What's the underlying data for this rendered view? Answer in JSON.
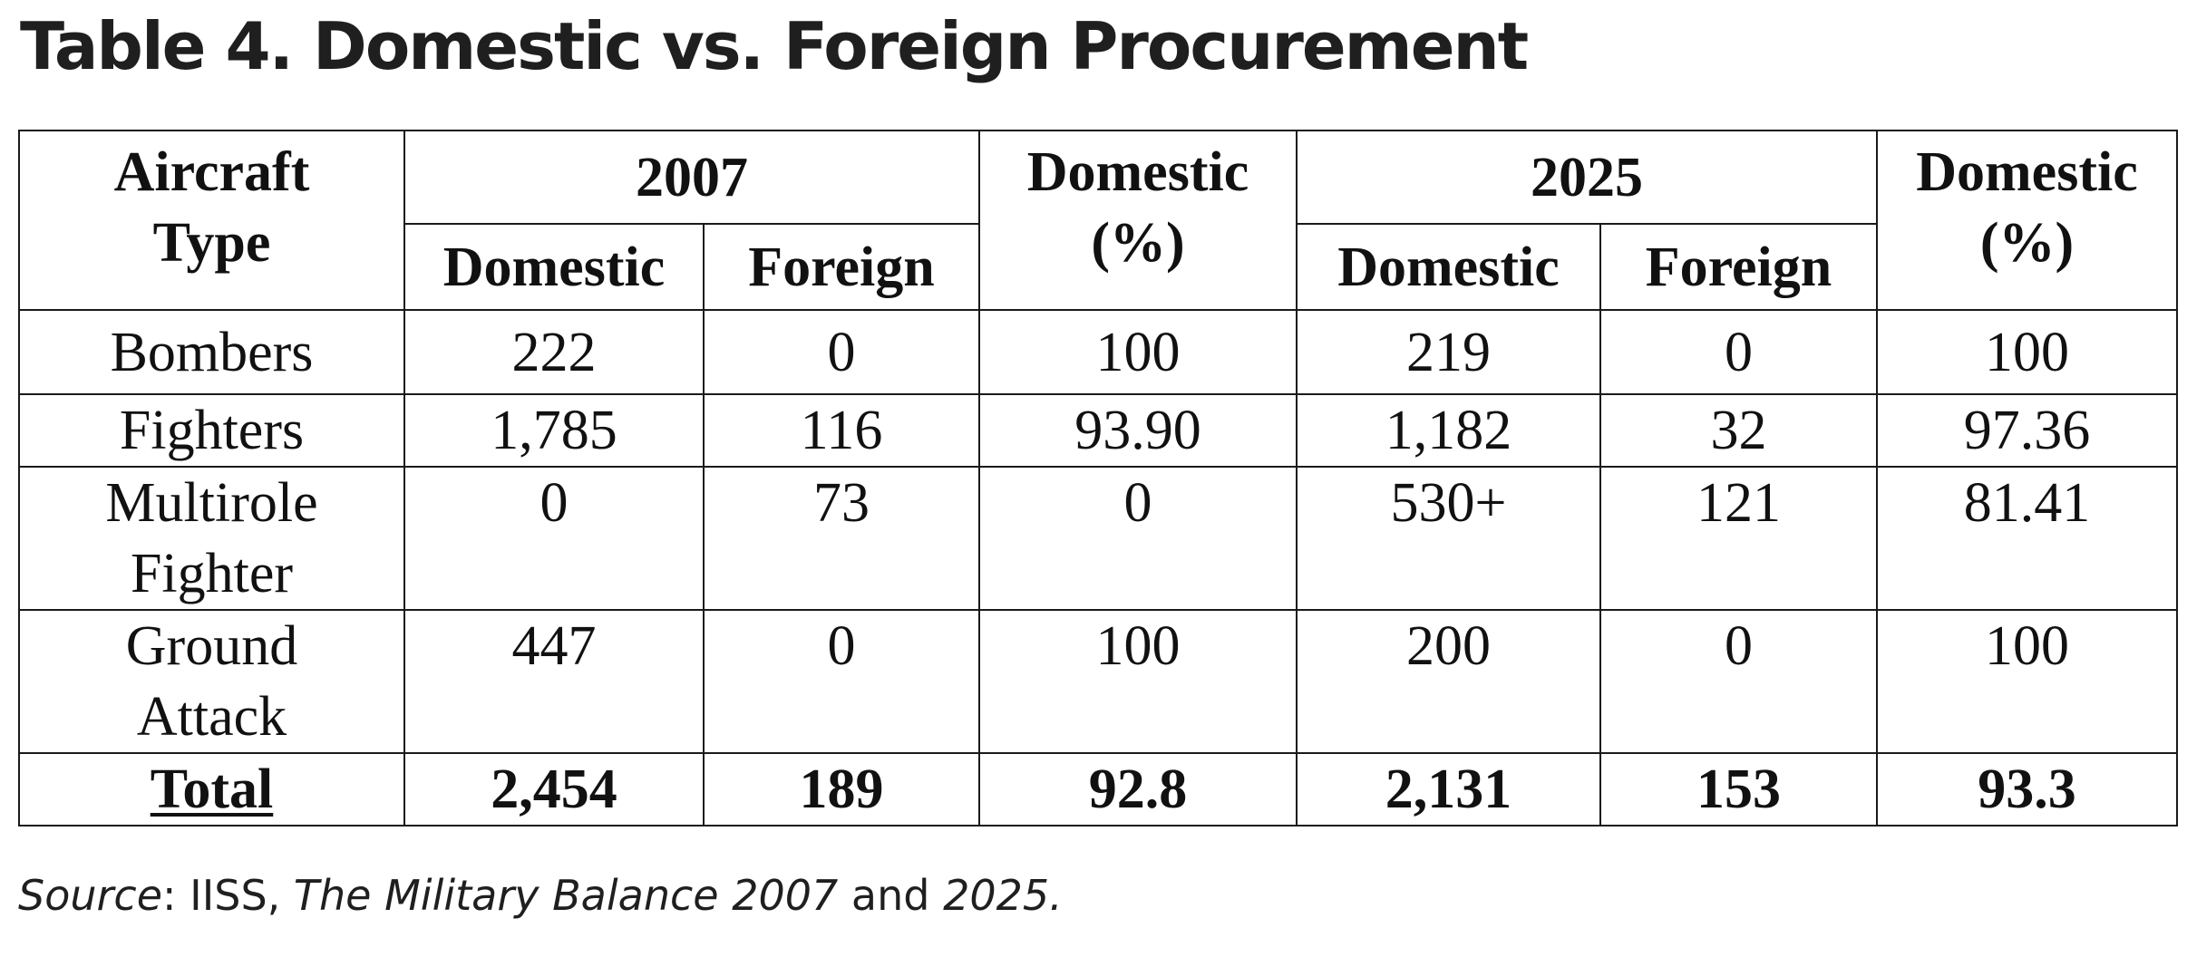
{
  "title": "Table 4. Domestic vs. Foreign Procurement",
  "table": {
    "header": {
      "aircraft_type_l1": "Aircraft",
      "aircraft_type_l2": "Type",
      "year_a": "2007",
      "year_b": "2025",
      "domestic": "Domestic",
      "foreign": "Foreign",
      "pct_l1": "Domestic",
      "pct_l2": "(%)"
    },
    "rows": [
      {
        "label_l1": "Bombers",
        "label_l2": "",
        "d2007": "222",
        "f2007": "0",
        "p2007": "100",
        "d2025": "219",
        "f2025": "0",
        "p2025": "100"
      },
      {
        "label_l1": "Fighters",
        "label_l2": "",
        "d2007": "1,785",
        "f2007": "116",
        "p2007": "93.90",
        "d2025": "1,182",
        "f2025": "32",
        "p2025": "97.36"
      },
      {
        "label_l1": "Multirole",
        "label_l2": "Fighter",
        "d2007": "0",
        "f2007": "73",
        "p2007": "0",
        "d2025": "530+",
        "f2025": "121",
        "p2025": "81.41"
      },
      {
        "label_l1": "Ground",
        "label_l2": "Attack",
        "d2007": "447",
        "f2007": "0",
        "p2007": "100",
        "d2025": "200",
        "f2025": "0",
        "p2025": "100"
      }
    ],
    "total": {
      "label": "Total",
      "d2007": "2,454",
      "f2007": "189",
      "p2007": "92.8",
      "d2025": "2,131",
      "f2025": "153",
      "p2025": "93.3"
    }
  },
  "source": {
    "prefix": "Source",
    "sep": ": IISS, ",
    "publication": "The Military Balance 2007",
    "and": " and ",
    "year": "2025."
  }
}
